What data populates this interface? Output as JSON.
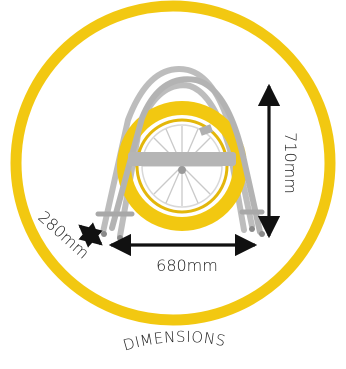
{
  "diagram": {
    "accent_color": "#f2c811",
    "frame_color": "#bdbdbd",
    "arrow_color": "#111111",
    "labels": {
      "height": "710mm",
      "width": "680mm",
      "depth": "280mm"
    },
    "caption": "DIMENSIONS",
    "icons": [
      "reel-icon",
      "frame-icon"
    ]
  }
}
